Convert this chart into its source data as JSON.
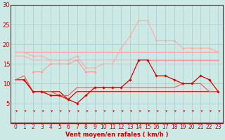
{
  "x": [
    0,
    1,
    2,
    3,
    4,
    5,
    6,
    7,
    8,
    9,
    10,
    11,
    12,
    13,
    14,
    15,
    16,
    17,
    18,
    19,
    20,
    21,
    22,
    23
  ],
  "background_color": "#cce9e5",
  "grid_color": "#aacccc",
  "xlabel": "Vent moyen/en rafales ( km/h )",
  "ylim": [
    0,
    30
  ],
  "yticks": [
    5,
    10,
    15,
    20,
    25,
    30
  ],
  "xlim": [
    -0.5,
    23.5
  ],
  "lines": [
    {
      "y": [
        18,
        18,
        18,
        18,
        18,
        18,
        18,
        18,
        18,
        18,
        18,
        18,
        18,
        18,
        18,
        18,
        18,
        18,
        18,
        18,
        18,
        18,
        18,
        18
      ],
      "color": "#ff9999",
      "lw": 0.8,
      "marker": null,
      "ms": 0
    },
    {
      "y": [
        17,
        17,
        16,
        16,
        16,
        16,
        16,
        16,
        16,
        16,
        16,
        16,
        16,
        16,
        16,
        16,
        16,
        16,
        16,
        16,
        16,
        16,
        16,
        16
      ],
      "color": "#ffaaaa",
      "lw": 0.8,
      "marker": null,
      "ms": 0
    },
    {
      "y": [
        18,
        18,
        17,
        17,
        16,
        16,
        16,
        17,
        14,
        14,
        15,
        15,
        19,
        22,
        26,
        26,
        21,
        21,
        21,
        19,
        19,
        19,
        19,
        18
      ],
      "color": "#ffaaaa",
      "lw": 0.8,
      "marker": "D",
      "ms": 1.5
    },
    {
      "y": [
        null,
        null,
        13,
        13,
        15,
        15,
        15,
        16,
        13,
        13,
        null,
        null,
        null,
        null,
        null,
        null,
        null,
        null,
        null,
        null,
        null,
        null,
        null,
        null
      ],
      "color": "#ff9999",
      "lw": 0.8,
      "marker": "D",
      "ms": 1.5
    },
    {
      "y": [
        null,
        null,
        null,
        null,
        null,
        null,
        null,
        null,
        null,
        null,
        null,
        null,
        null,
        null,
        null,
        16,
        16,
        16,
        16,
        16,
        16,
        16,
        16,
        16
      ],
      "color": "#ff9999",
      "lw": 0.8,
      "marker": "D",
      "ms": 1.5
    },
    {
      "y": [
        11,
        11,
        8,
        8,
        8,
        8,
        6,
        8,
        8,
        8,
        8,
        8,
        8,
        8,
        8,
        8,
        8,
        8,
        8,
        8,
        8,
        8,
        8,
        8
      ],
      "color": "#dd0000",
      "lw": 0.9,
      "marker": null,
      "ms": 0
    },
    {
      "y": [
        null,
        11,
        8,
        8,
        7,
        7,
        6,
        5,
        7,
        9,
        9,
        9,
        9,
        11,
        16,
        16,
        12,
        12,
        11,
        10,
        10,
        12,
        11,
        8
      ],
      "color": "#dd0000",
      "lw": 0.9,
      "marker": "D",
      "ms": 1.8
    },
    {
      "y": [
        11,
        12,
        8,
        8,
        8,
        7,
        7,
        9,
        9,
        9,
        9,
        9,
        9,
        9,
        9,
        9,
        9,
        9,
        9,
        10,
        10,
        10,
        8,
        8
      ],
      "color": "#ff5555",
      "lw": 0.8,
      "marker": null,
      "ms": 0
    }
  ],
  "arrow_color": "#dd0000",
  "xlabel_color": "#cc0000",
  "tick_color": "#cc0000",
  "spine_color": "#cc0000"
}
